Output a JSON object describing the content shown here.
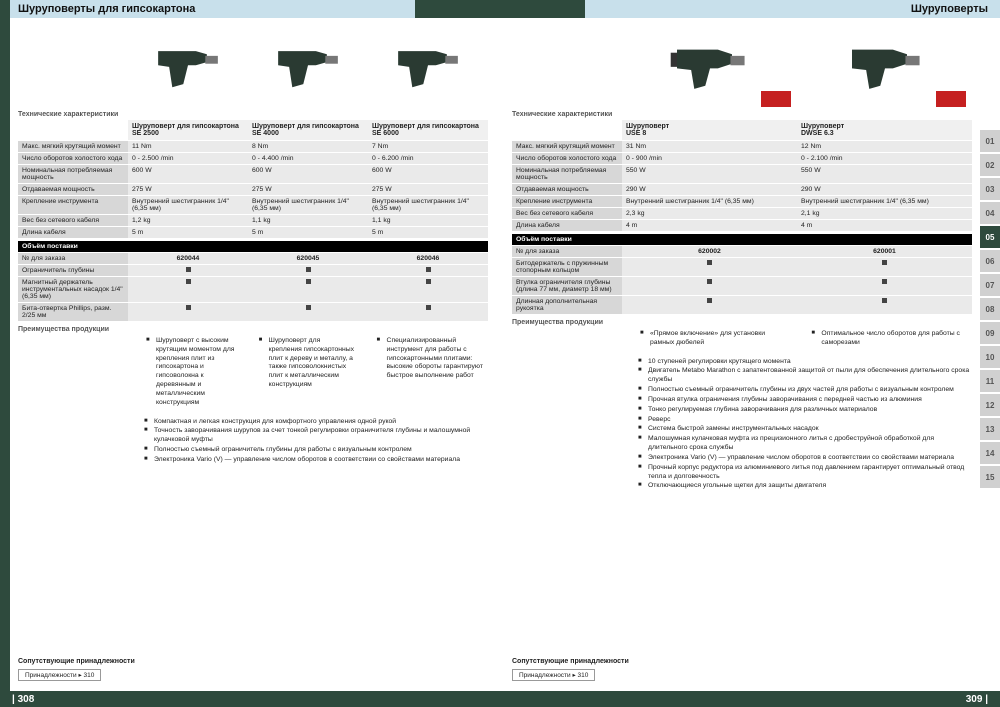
{
  "colors": {
    "brand": "#2e4a3d",
    "headerGrad": "#c8e0eb",
    "badge": "#c52020",
    "rowLabel": "#d7d7d7",
    "rowVal": "#eaeaea"
  },
  "left": {
    "title": "Шуруповерты для гипсокартона",
    "section_spec": "Технические характеристики",
    "products": [
      {
        "name": "Шуруповерт для гипсокартона",
        "model": "SE 2500"
      },
      {
        "name": "Шуруповерт для гипсокартона",
        "model": "SE 4000"
      },
      {
        "name": "Шуруповерт для гипсокартона",
        "model": "SE 6000"
      }
    ],
    "specs": [
      {
        "label": "Макс. мягкий крутящий момент",
        "v": [
          "11 Nm",
          "8 Nm",
          "7 Nm"
        ]
      },
      {
        "label": "Число оборотов холостого хода",
        "v": [
          "0 - 2.500 /min",
          "0 - 4.400 /min",
          "0 - 6.200 /min"
        ]
      },
      {
        "label": "Номинальная потребляемая мощность",
        "v": [
          "600 W",
          "600 W",
          "600 W"
        ]
      },
      {
        "label": "Отдаваемая мощность",
        "v": [
          "275 W",
          "275 W",
          "275 W"
        ]
      },
      {
        "label": "Крепление инструмента",
        "v": [
          "Внутренний шестигранник 1/4\" (6,35 мм)",
          "Внутренний шестигранник 1/4\" (6,35 мм)",
          "Внутренний шестигранник 1/4\" (6,35 мм)"
        ]
      },
      {
        "label": "Вес без сетевого кабеля",
        "v": [
          "1,2 kg",
          "1,1 kg",
          "1,1 kg"
        ]
      },
      {
        "label": "Длина кабеля",
        "v": [
          "5 m",
          "5 m",
          "5 m"
        ]
      }
    ],
    "scope_hdr": "Объём поставки",
    "order_label": "№ для заказа",
    "orders": [
      "620044",
      "620045",
      "620046"
    ],
    "scope_rows": [
      "Ограничитель глубины",
      "Магнитный держатель инструментальных насадок 1/4\" (6,35 мм)",
      "Бита-отвертка Phillips, разм. 2/25 мм"
    ],
    "adv_hdr": "Преимущества продукции",
    "adv_cols": [
      "Шуруповерт с высоким крутящим моментом для крепления плит из гипсокартона и гипсоволокна к деревянным и металлическим конструкциям",
      "Шуруповерт для крепления гипсокартонных плит к дереву и металлу, а также гипсоволокнистых плит к металлическим конструкциям",
      "Специализированный инструмент для работы с гипсокартонными плитами: высокие обороты гарантируют быстрое выполнение работ"
    ],
    "shared_bullets": [
      "Компактная и легкая конструкция для комфортного управления одной рукой",
      "Точность заворачивания шурупов за счет тонкой регулировки ограничителя глубины и малошумной кулачковой муфты",
      "Полностью съемный ограничитель глубины для работы с визуальным контролем",
      "Электроника Vario (V) — управление числом оборотов в соответствии со свойствами материала"
    ],
    "see_also_hdr": "Сопутствующие принадлежности",
    "see_also_link": "Принадлежности ▸ 310",
    "page_no": "| 308"
  },
  "right": {
    "title": "Шуруповерты",
    "section_spec": "Технические характеристики",
    "products": [
      {
        "name": "Шуруповерт",
        "model": "USE 8"
      },
      {
        "name": "Шуруповерт",
        "model": "DWSE 6.3"
      }
    ],
    "specs": [
      {
        "label": "Макс. мягкий крутящий момент",
        "v": [
          "31 Nm",
          "12 Nm"
        ]
      },
      {
        "label": "Число оборотов холостого хода",
        "v": [
          "0 - 900 /min",
          "0 - 2.100 /min"
        ]
      },
      {
        "label": "Номинальная потребляемая мощность",
        "v": [
          "550 W",
          "550 W"
        ]
      },
      {
        "label": "Отдаваемая мощность",
        "v": [
          "290 W",
          "290 W"
        ]
      },
      {
        "label": "Крепление инструмента",
        "v": [
          "Внутренний шестигранник 1/4\" (6,35 мм)",
          "Внутренний шестигранник 1/4\" (6,35 мм)"
        ]
      },
      {
        "label": "Вес без сетевого кабеля",
        "v": [
          "2,3 kg",
          "2,1 kg"
        ]
      },
      {
        "label": "Длина кабеля",
        "v": [
          "4 m",
          "4 m"
        ]
      }
    ],
    "scope_hdr": "Объём поставки",
    "order_label": "№ для заказа",
    "orders": [
      "620002",
      "620001"
    ],
    "scope_rows": [
      "Битодержатель с пружинным стопорным кольцом",
      "Втулка ограничителя глубины (длина 77 мм, диаметр 18 мм)",
      "Длинная дополнительная рукоятка"
    ],
    "adv_hdr": "Преимущества продукции",
    "adv_cols": [
      "«Прямое включение» для установки рамных дюбелей",
      "Оптимальное число оборотов для работы с саморезами"
    ],
    "shared_bullets": [
      "10 ступеней регулировки крутящего момента",
      "Двигатель Metabo Marathon с запатентованной защитой от пыли для обеспечения длительного срока службы",
      "Полностью съемный ограничитель глубины из двух частей для работы с визуальным контролем",
      "Прочная втулка ограничения глубины заворачивания с передней частью из алюминия",
      "Тонко регулируемая глубина заворачивания для различных материалов",
      "Реверс",
      "Система быстрой замены инструментальных насадок",
      "Малошумная кулачковая муфта из прецизионного литья с дробеструйной обработкой для длительного срока службы",
      "Электроника Vario (V) — управление числом оборотов в соответствии со свойствами материала",
      "Прочный корпус редуктора из алюминиевого литья под давлением гарантирует оптимальный отвод тепла и долговечность",
      "Отключающиеся угольные щетки для защиты двигателя"
    ],
    "see_also_hdr": "Сопутствующие принадлежности",
    "see_also_link": "Принадлежности ▸ 310",
    "page_no": "309 |",
    "tabs": [
      "01",
      "02",
      "03",
      "04",
      "05",
      "06",
      "07",
      "08",
      "09",
      "10",
      "11",
      "12",
      "13",
      "14",
      "15"
    ],
    "active_tab": "05"
  }
}
